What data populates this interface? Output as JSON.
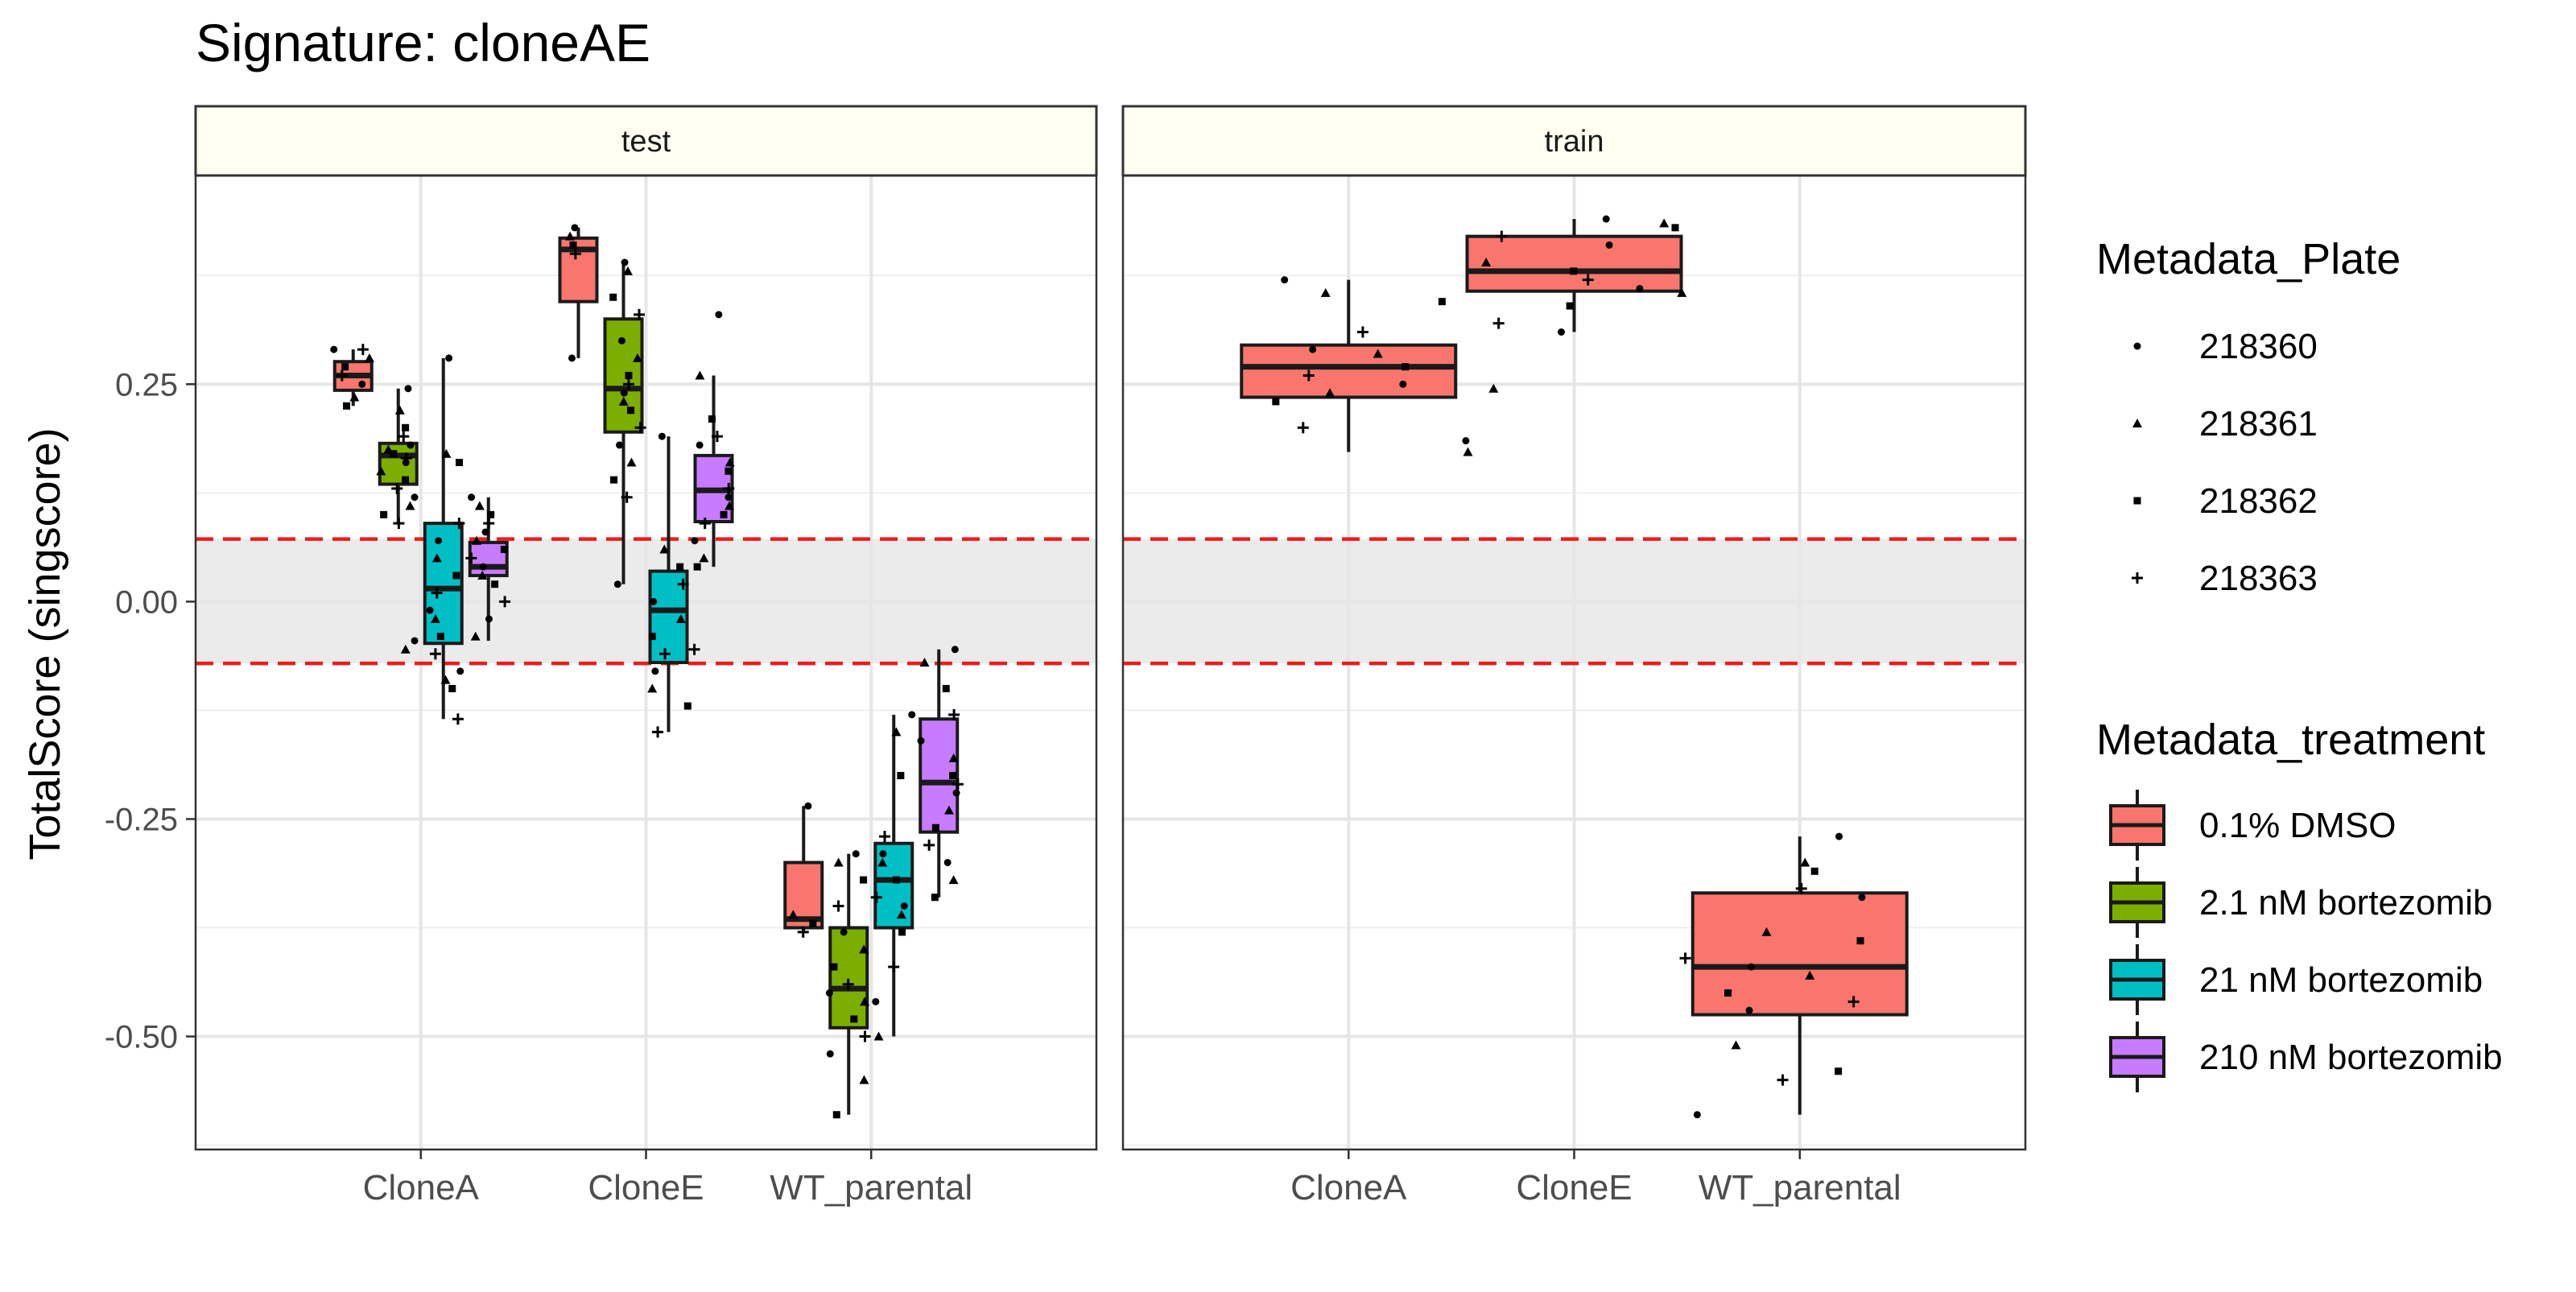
{
  "title": "Signature: cloneAE",
  "ylabel": "TotalScore (singscore)",
  "colors": {
    "DMSO": "#f8766d",
    "b21": "#7cae00",
    "b210": "#00bfc4",
    "b2100": "#c77cff",
    "threshold": "#ee1c1c",
    "band": "#ebebeb",
    "grid": "#e6e6e6",
    "strip": "#fffff2"
  },
  "chart_data": {
    "type": "boxplot",
    "title": "Signature: cloneAE",
    "xlabel": "",
    "ylabel": "TotalScore (singscore)",
    "ylim": [
      -0.63,
      0.49
    ],
    "yticks": [
      0.25,
      0.0,
      -0.25,
      -0.5
    ],
    "ytick_labels": [
      "0.25",
      "0.00",
      "-0.25",
      "-0.50"
    ],
    "categories": [
      "CloneA",
      "CloneE",
      "WT_parental"
    ],
    "grid": true,
    "threshold_lines": [
      0.072,
      -0.071
    ],
    "facets": [
      {
        "name": "test",
        "groups": [
          {
            "category": "CloneA",
            "series": "0.1% DMSO",
            "whisker_low": 0.225,
            "q1": 0.243,
            "median": 0.26,
            "q3": 0.276,
            "whisker_high": 0.29,
            "points": [
              0.29,
              0.28,
              0.27,
              0.26,
              0.25,
              0.235,
              0.225,
              0.29
            ]
          },
          {
            "category": "CloneA",
            "series": "2.1 nM bortezomib",
            "whisker_low": 0.09,
            "q1": 0.135,
            "median": 0.168,
            "q3": 0.182,
            "whisker_high": 0.245,
            "points": [
              0.245,
              0.22,
              0.2,
              0.19,
              0.18,
              0.175,
              0.17,
              0.165,
              0.16,
              0.15,
              0.14,
              0.13,
              0.12,
              0.11,
              0.1,
              0.09,
              -0.045,
              -0.055
            ]
          },
          {
            "category": "CloneA",
            "series": "21 nM bortezomib",
            "whisker_low": -0.135,
            "q1": -0.048,
            "median": 0.015,
            "q3": 0.09,
            "whisker_high": 0.28,
            "points": [
              0.28,
              0.17,
              0.16,
              0.09,
              0.07,
              0.05,
              0.03,
              0.01,
              -0.01,
              -0.02,
              -0.04,
              -0.06,
              -0.08,
              -0.09,
              -0.1,
              -0.135
            ]
          },
          {
            "category": "CloneA",
            "series": "210 nM bortezomib",
            "whisker_low": -0.045,
            "q1": 0.03,
            "median": 0.04,
            "q3": 0.068,
            "whisker_high": 0.12,
            "points": [
              0.12,
              0.11,
              0.1,
              0.09,
              0.08,
              0.07,
              0.06,
              0.05,
              0.04,
              0.03,
              0.02,
              0.0,
              -0.02,
              -0.04
            ]
          },
          {
            "category": "CloneE",
            "series": "0.1% DMSO",
            "whisker_low": 0.28,
            "q1": 0.345,
            "median": 0.405,
            "q3": 0.418,
            "whisker_high": 0.43,
            "points": [
              0.43,
              0.42,
              0.41,
              0.4,
              0.28
            ]
          },
          {
            "category": "CloneE",
            "series": "2.1 nM bortezomib",
            "whisker_low": 0.02,
            "q1": 0.195,
            "median": 0.245,
            "q3": 0.325,
            "whisker_high": 0.39,
            "points": [
              0.39,
              0.38,
              0.35,
              0.33,
              0.3,
              0.28,
              0.26,
              0.25,
              0.24,
              0.23,
              0.22,
              0.2,
              0.18,
              0.16,
              0.14,
              0.12,
              0.02
            ]
          },
          {
            "category": "CloneE",
            "series": "21 nM bortezomib",
            "whisker_low": -0.15,
            "q1": -0.07,
            "median": -0.01,
            "q3": 0.035,
            "whisker_high": 0.19,
            "points": [
              0.19,
              0.06,
              0.04,
              0.02,
              0.0,
              -0.02,
              -0.04,
              -0.06,
              -0.08,
              -0.1,
              -0.12,
              -0.15
            ]
          },
          {
            "category": "CloneE",
            "series": "210 nM bortezomib",
            "whisker_low": 0.04,
            "q1": 0.092,
            "median": 0.128,
            "q3": 0.168,
            "whisker_high": 0.26,
            "points": [
              0.33,
              0.26,
              0.21,
              0.19,
              0.18,
              0.16,
              0.15,
              0.13,
              0.12,
              0.11,
              0.1,
              0.09,
              0.07,
              0.05,
              0.04,
              -0.055
            ]
          },
          {
            "category": "WT_parental",
            "series": "0.1% DMSO",
            "whisker_low": -0.38,
            "q1": -0.375,
            "median": -0.365,
            "q3": -0.3,
            "whisker_high": -0.235,
            "points": [
              -0.235,
              -0.36,
              -0.37,
              -0.38
            ]
          },
          {
            "category": "WT_parental",
            "series": "2.1 nM bortezomib",
            "whisker_low": -0.59,
            "q1": -0.49,
            "median": -0.445,
            "q3": -0.375,
            "whisker_high": -0.29,
            "points": [
              -0.29,
              -0.3,
              -0.32,
              -0.35,
              -0.38,
              -0.4,
              -0.42,
              -0.44,
              -0.45,
              -0.46,
              -0.48,
              -0.5,
              -0.52,
              -0.55,
              -0.59
            ]
          },
          {
            "category": "WT_parental",
            "series": "21 nM bortezomib",
            "whisker_low": -0.5,
            "q1": -0.375,
            "median": -0.32,
            "q3": -0.278,
            "whisker_high": -0.13,
            "points": [
              -0.13,
              -0.15,
              -0.2,
              -0.27,
              -0.29,
              -0.3,
              -0.32,
              -0.34,
              -0.35,
              -0.36,
              -0.38,
              -0.42,
              -0.46,
              -0.5
            ]
          },
          {
            "category": "WT_parental",
            "series": "210 nM bortezomib",
            "whisker_low": -0.34,
            "q1": -0.265,
            "median": -0.208,
            "q3": -0.135,
            "whisker_high": -0.055,
            "points": [
              -0.055,
              -0.07,
              -0.1,
              -0.13,
              -0.16,
              -0.18,
              -0.2,
              -0.21,
              -0.22,
              -0.24,
              -0.26,
              -0.28,
              -0.3,
              -0.32,
              -0.34
            ]
          }
        ]
      },
      {
        "name": "train",
        "groups": [
          {
            "category": "CloneA",
            "series": "0.1% DMSO",
            "whisker_low": 0.172,
            "q1": 0.235,
            "median": 0.27,
            "q3": 0.295,
            "whisker_high": 0.37,
            "points": [
              0.37,
              0.355,
              0.345,
              0.31,
              0.29,
              0.285,
              0.27,
              0.26,
              0.25,
              0.24,
              0.23,
              0.2,
              0.185,
              0.172
            ]
          },
          {
            "category": "CloneE",
            "series": "0.1% DMSO",
            "whisker_low": 0.31,
            "q1": 0.357,
            "median": 0.38,
            "q3": 0.42,
            "whisker_high": 0.44,
            "points": [
              0.44,
              0.435,
              0.43,
              0.42,
              0.41,
              0.39,
              0.38,
              0.37,
              0.36,
              0.355,
              0.34,
              0.32,
              0.31,
              0.245
            ]
          },
          {
            "category": "WT_parental",
            "series": "0.1% DMSO",
            "whisker_low": -0.59,
            "q1": -0.475,
            "median": -0.42,
            "q3": -0.335,
            "whisker_high": -0.27,
            "points": [
              -0.27,
              -0.3,
              -0.31,
              -0.33,
              -0.34,
              -0.38,
              -0.39,
              -0.41,
              -0.42,
              -0.43,
              -0.45,
              -0.46,
              -0.47,
              -0.51,
              -0.54,
              -0.55,
              -0.59
            ]
          }
        ]
      }
    ],
    "legends": [
      {
        "title": "Metadata_Plate",
        "kind": "shape",
        "items": [
          {
            "label": "218360",
            "shape": "circle"
          },
          {
            "label": "218361",
            "shape": "triangle"
          },
          {
            "label": "218362",
            "shape": "square"
          },
          {
            "label": "218363",
            "shape": "plus"
          }
        ]
      },
      {
        "title": "Metadata_treatment",
        "kind": "fill",
        "items": [
          {
            "label": "0.1% DMSO",
            "color": "#f8766d"
          },
          {
            "label": "2.1 nM bortezomib",
            "color": "#7cae00"
          },
          {
            "label": "21 nM bortezomib",
            "color": "#00bfc4"
          },
          {
            "label": "210 nM bortezomib",
            "color": "#c77cff"
          }
        ]
      }
    ],
    "legend_position": "right"
  }
}
